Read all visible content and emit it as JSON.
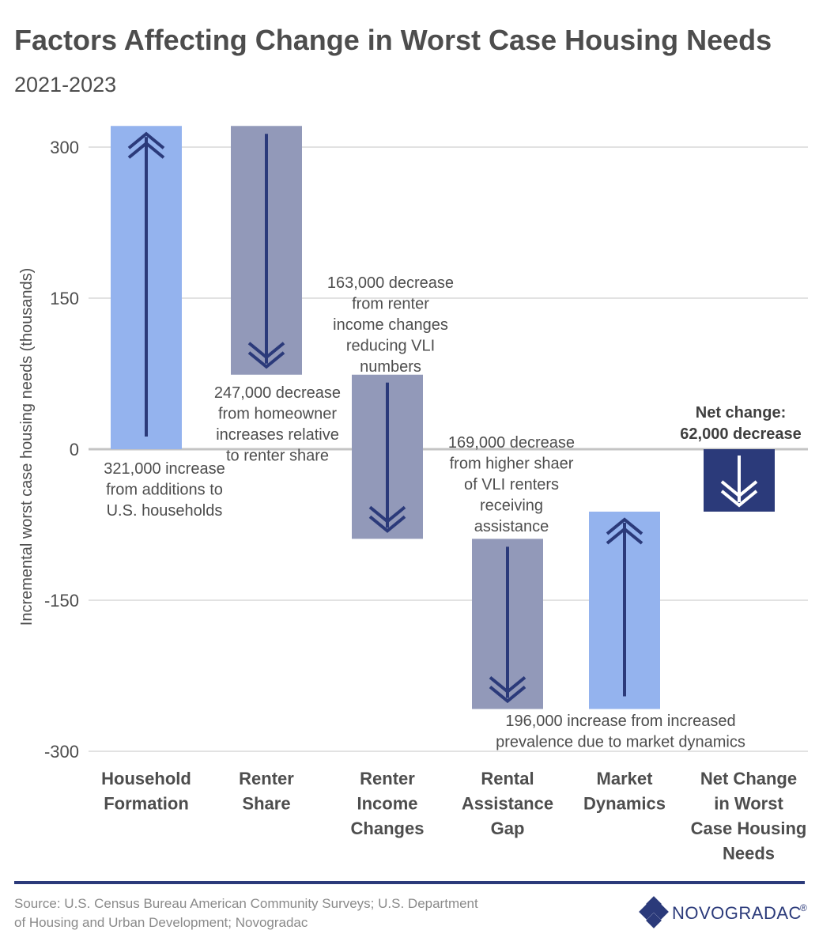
{
  "colors": {
    "increase": "#94b3ee",
    "decrease": "#9299b9",
    "net": "#2b3a7a",
    "arrow": "#2b3a7a",
    "grid": "#d0d0d0",
    "zero": "#c4c4c4",
    "rule": "#2b3a7a"
  },
  "chart_data": {
    "type": "bar",
    "subtype": "waterfall",
    "title": "Factors Affecting Change in Worst Case Housing Needs",
    "subtitle": "2021-2023",
    "ylabel": "Incremental worst case housing needs (thousands)",
    "xlabel": "",
    "ylim": [
      -300,
      300
    ],
    "yticks": [
      {
        "value": 300,
        "label": "300"
      },
      {
        "value": 150,
        "label": "150"
      },
      {
        "value": 0,
        "label": "0"
      },
      {
        "value": -150,
        "label": "-150"
      },
      {
        "value": -300,
        "label": "-300"
      }
    ],
    "categories": [
      {
        "lines": [
          "Household",
          "Formation"
        ]
      },
      {
        "lines": [
          "Renter",
          "Share"
        ]
      },
      {
        "lines": [
          "Renter",
          "Income",
          "Changes"
        ]
      },
      {
        "lines": [
          "Rental",
          "Assistance",
          "Gap"
        ]
      },
      {
        "lines": [
          "Market",
          "Dynamics"
        ]
      },
      {
        "lines": [
          "Net Change",
          "in Worst",
          "Case Housing",
          "Needs"
        ]
      }
    ],
    "bars": [
      {
        "start": 0,
        "end": 321,
        "kind": "increase"
      },
      {
        "start": 321,
        "end": 74,
        "kind": "decrease"
      },
      {
        "start": 74,
        "end": -89,
        "kind": "decrease"
      },
      {
        "start": -89,
        "end": -258,
        "kind": "decrease"
      },
      {
        "start": -258,
        "end": -62,
        "kind": "increase"
      },
      {
        "start": 0,
        "end": -62,
        "kind": "net"
      }
    ],
    "annotations": [
      {
        "lines": [
          "321,000 increase",
          "from additions to",
          "U.S. households"
        ],
        "bold": false
      },
      {
        "lines": [
          "247,000 decrease",
          "from homeowner",
          "increases relative",
          "to renter share"
        ],
        "bold": false
      },
      {
        "lines": [
          "163,000 decrease",
          "from renter",
          "income changes",
          "reducing VLI",
          "numbers"
        ],
        "bold": false
      },
      {
        "lines": [
          "169,000 decrease",
          "from higher shaer",
          "of VLI renters",
          "receiving",
          "assistance"
        ],
        "bold": false
      },
      {
        "lines": [
          "196,000 increase from increased",
          "prevalence due to market dynamics"
        ],
        "bold": false
      },
      {
        "lines": [
          "Net change:",
          "62,000 decrease"
        ],
        "bold": true
      }
    ]
  },
  "footer": {
    "source_lines": [
      "Source: U.S. Census Bureau American Community Surveys; U.S. Department",
      "of Housing and Urban Development; Novogradac"
    ],
    "logo_text": "NOVOGRADAC",
    "logo_mark": "®"
  }
}
